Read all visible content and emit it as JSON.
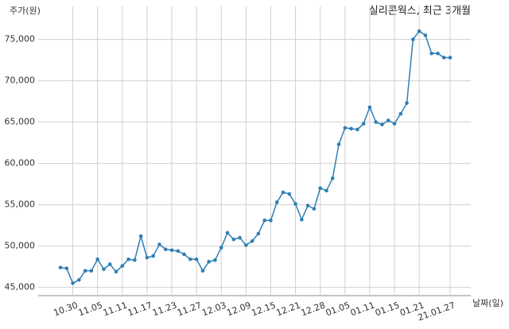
{
  "chart_data": {
    "type": "line",
    "title": "실리콘웍스, 최근 3개월",
    "y_label": "주가(원)",
    "x_label": "날짜(일)",
    "categories": [
      null,
      null,
      "10.30",
      null,
      null,
      null,
      "11.05",
      null,
      null,
      null,
      "11.11",
      null,
      null,
      null,
      "11.17",
      null,
      null,
      null,
      "11.23",
      null,
      null,
      null,
      "11.27",
      null,
      null,
      null,
      "12.03",
      null,
      null,
      null,
      "12.09",
      null,
      null,
      null,
      "12.15",
      null,
      null,
      null,
      "12.21",
      null,
      null,
      null,
      "12.28",
      null,
      null,
      null,
      "01.05",
      null,
      null,
      null,
      "01.11",
      null,
      null,
      null,
      "01.15",
      null,
      null,
      null,
      "01.21",
      null,
      null,
      null,
      null,
      "21.01.27"
    ],
    "series": [
      {
        "name": "주가",
        "color": "#2f7fb5",
        "values": [
          47400,
          47300,
          45500,
          45900,
          47000,
          47000,
          48400,
          47200,
          47800,
          46900,
          47600,
          48400,
          48300,
          51200,
          48600,
          48800,
          50200,
          49600,
          49500,
          49400,
          49000,
          48400,
          48400,
          47000,
          48100,
          48300,
          49800,
          51600,
          50800,
          51000,
          50100,
          50600,
          51500,
          53100,
          53100,
          55300,
          56500,
          56300,
          55100,
          53200,
          54900,
          54500,
          57000,
          56700,
          58200,
          62300,
          64300,
          64200,
          64100,
          64800,
          66800,
          65000,
          64700,
          65200,
          64800,
          66000,
          67300,
          75000,
          76000,
          75500,
          73300,
          73300,
          72800,
          72800
        ]
      }
    ],
    "ylim": [
      44000,
      79000
    ],
    "yticks": [
      {
        "value": 45000,
        "label": "45,000"
      },
      {
        "value": 50000,
        "label": "50,000"
      },
      {
        "value": 55000,
        "label": "55,000"
      },
      {
        "value": 60000,
        "label": "60,000"
      },
      {
        "value": 65000,
        "label": "65,000"
      },
      {
        "value": 70000,
        "label": "70,000"
      },
      {
        "value": 75000,
        "label": "75,000"
      }
    ],
    "grid": true
  }
}
